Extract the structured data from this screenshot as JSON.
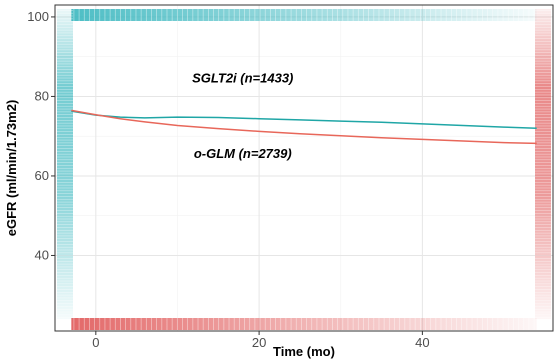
{
  "chart_data": {
    "type": "line",
    "title": "",
    "xlabel": "Time (mo)",
    "ylabel": "eGFR (ml/min/1.73m2)",
    "xlim": [
      -5,
      56
    ],
    "ylim": [
      21,
      103
    ],
    "x_ticks": [
      0,
      20,
      40
    ],
    "y_ticks": [
      40,
      60,
      80,
      100
    ],
    "x_tick_labels": [
      "0",
      "20",
      "40"
    ],
    "y_tick_labels": [
      "40",
      "60",
      "80",
      "100"
    ],
    "grid": true,
    "legend": "none",
    "series": [
      {
        "name": "SGLT2i (n=1433)",
        "color": "#1fa6a6",
        "x": [
          -3,
          0,
          3,
          6,
          10,
          15,
          20,
          25,
          30,
          35,
          40,
          45,
          50,
          54
        ],
        "y": [
          76.3,
          75.3,
          74.8,
          74.6,
          74.8,
          74.7,
          74.4,
          74.1,
          73.8,
          73.5,
          73.1,
          72.7,
          72.3,
          72.0
        ]
      },
      {
        "name": "o-GLM (n=2739)",
        "color": "#e8675a",
        "x": [
          -3,
          0,
          3,
          6,
          10,
          15,
          20,
          25,
          30,
          35,
          40,
          45,
          50,
          54
        ],
        "y": [
          76.5,
          75.4,
          74.4,
          73.6,
          72.7,
          71.9,
          71.2,
          70.6,
          70.1,
          69.6,
          69.2,
          68.8,
          68.4,
          68.2
        ]
      }
    ],
    "annotations": [
      {
        "text": "SGLT2i (n=1433)",
        "x": 18,
        "y": 83.5
      },
      {
        "text": "o-GLM (n=2739)",
        "x": 18,
        "y": 64.5
      }
    ],
    "rug_colors": {
      "top": "#3ab7bf",
      "left": "#3ab7bf",
      "bottom": "#e05858",
      "right": "#e05858"
    }
  }
}
